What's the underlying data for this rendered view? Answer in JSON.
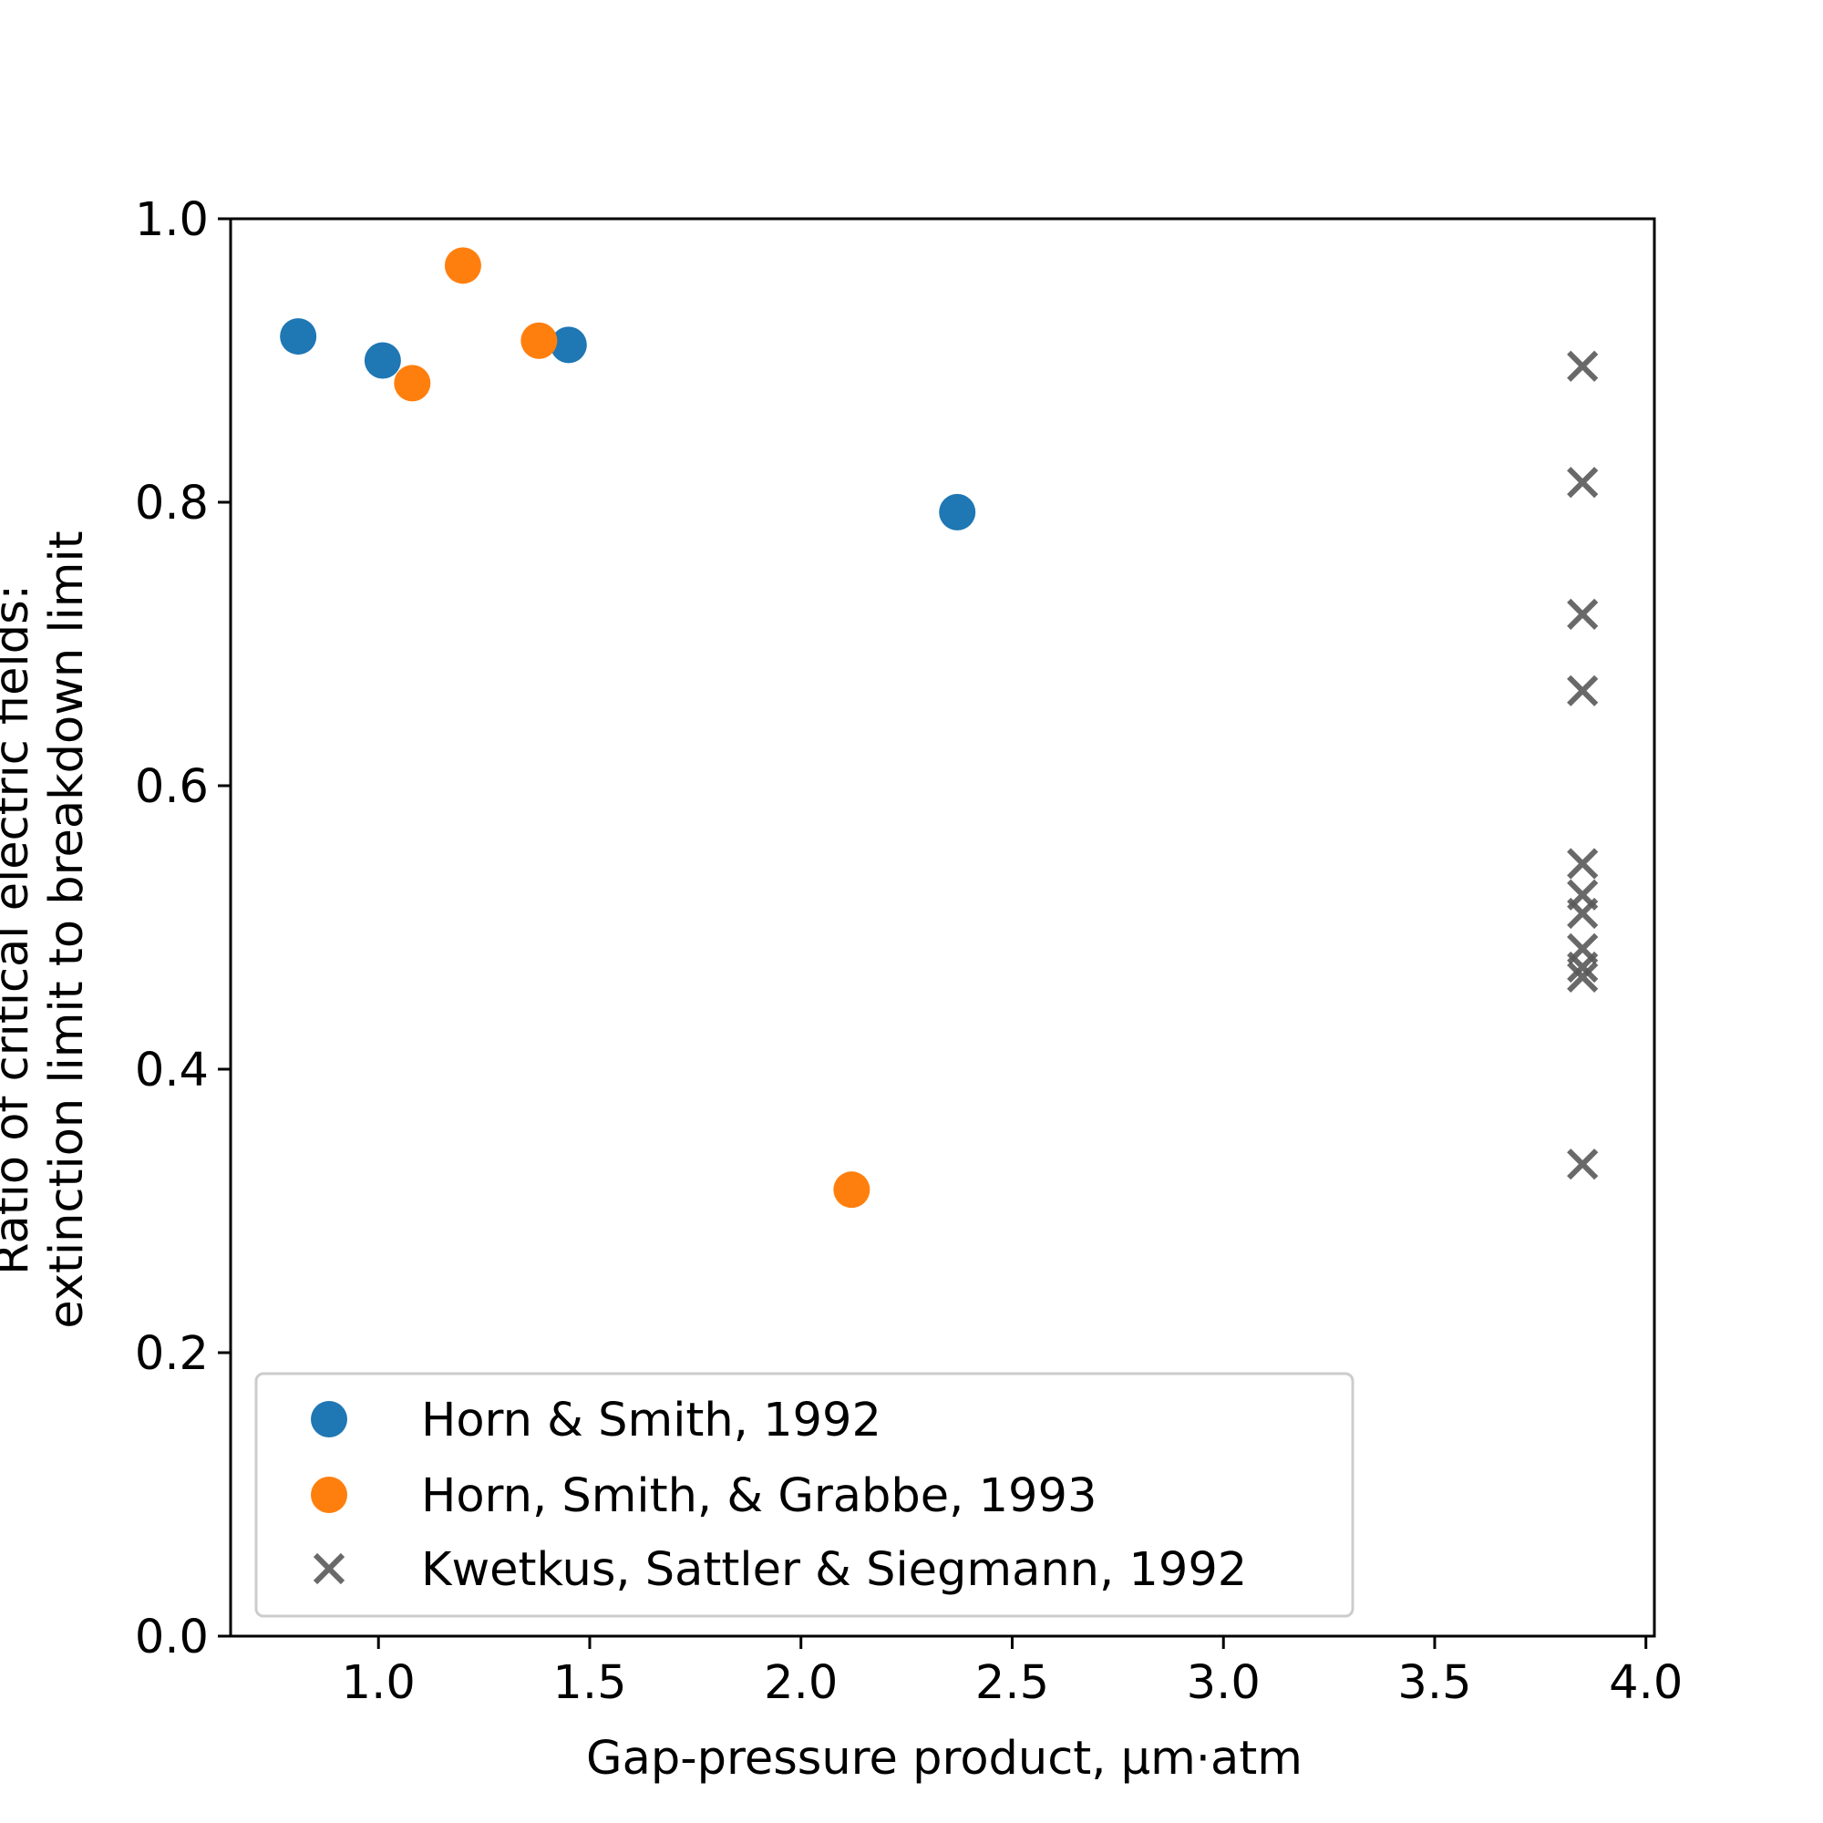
{
  "chart_data": {
    "type": "scatter",
    "title": "",
    "xlabel": "Gap-pressure product, μm·atm",
    "ylabel": [
      "Ratio of critical electric fields:",
      "extinction limit to breakdown limit"
    ],
    "xlim": [
      0.65,
      4.02
    ],
    "ylim": [
      0.0,
      1.0
    ],
    "xticks": [
      1.0,
      1.5,
      2.0,
      2.5,
      3.0,
      3.5,
      4.0
    ],
    "xtick_labels": [
      "1.0",
      "1.5",
      "2.0",
      "2.5",
      "3.0",
      "3.5",
      "4.0"
    ],
    "yticks": [
      0.0,
      0.2,
      0.4,
      0.6,
      0.8,
      1.0
    ],
    "ytick_labels": [
      "0.0",
      "0.2",
      "0.4",
      "0.6",
      "0.8",
      "1.0"
    ],
    "grid": false,
    "legend_position": "lower-left",
    "series": [
      {
        "name": "Horn & Smith, 1992",
        "marker": "circle",
        "color": "#1f77b4",
        "x": [
          0.81,
          1.01,
          1.45,
          2.37
        ],
        "y": [
          0.917,
          0.9,
          0.911,
          0.793
        ]
      },
      {
        "name": "Horn, Smith, & Grabbe, 1993",
        "marker": "circle",
        "color": "#ff7f0e",
        "x": [
          1.08,
          1.2,
          1.38,
          2.12
        ],
        "y": [
          0.884,
          0.967,
          0.914,
          0.315
        ]
      },
      {
        "name": "Kwetkus, Sattler & Siegmann, 1992",
        "marker": "x",
        "color": "#595959",
        "x": [
          3.85,
          3.85,
          3.85,
          3.85,
          3.85,
          3.85,
          3.85,
          3.85,
          3.85,
          3.85,
          3.85
        ],
        "y": [
          0.896,
          0.814,
          0.721,
          0.667,
          0.545,
          0.523,
          0.51,
          0.485,
          0.472,
          0.465,
          0.333
        ]
      }
    ]
  }
}
